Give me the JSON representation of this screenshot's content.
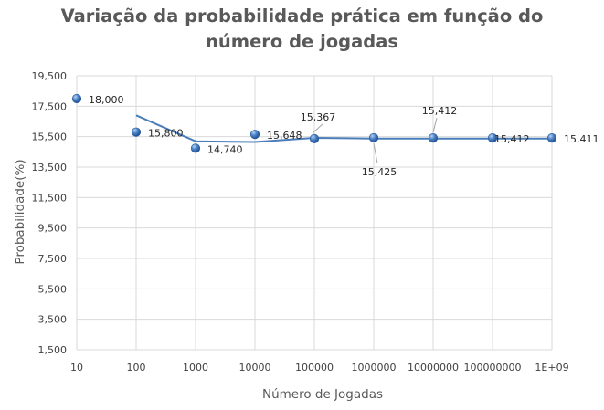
{
  "chart_data": {
    "type": "line",
    "title_lines": [
      "Variação da probabilidade prática em função do",
      "número de jogadas"
    ],
    "xlabel": "Número de Jogadas",
    "ylabel": "Probabilidade(%)",
    "categories": [
      "10",
      "100",
      "1000",
      "10000",
      "100000",
      "1000000",
      "10000000",
      "100000000",
      "1E+09"
    ],
    "y_ticks": [
      "19,500",
      "17,500",
      "15,500",
      "13,500",
      "11,500",
      "9,500",
      "7,500",
      "5,500",
      "3,500",
      "1,500"
    ],
    "ylim": [
      1.5,
      19.5
    ],
    "grid": "horizontal and vertical",
    "legend": "none",
    "series": [
      {
        "marker_values": [
          18.0,
          15.8,
          14.74,
          15.648,
          15.367,
          15.425,
          15.412,
          15.412,
          15.411
        ],
        "labels": [
          "18,000",
          "15,800",
          "14,740",
          "15,648",
          "15,367",
          "15,425",
          "15,412",
          "15,412",
          "15,411"
        ],
        "line_values": [
          null,
          16.9,
          15.2,
          15.15,
          15.42,
          15.38,
          15.38,
          15.38,
          15.38
        ],
        "color": "#4A7EBB",
        "marker_color": "#2E5FA1"
      }
    ]
  }
}
